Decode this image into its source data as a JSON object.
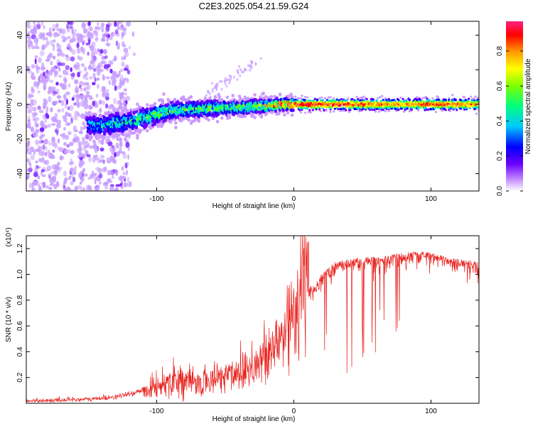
{
  "title": "C2E3.2025.054.21.59.G24",
  "colors": {
    "series": "#e8201c",
    "frame": "#000000"
  },
  "chart_data": [
    {
      "type": "heatmap",
      "xlabel": "Height of straight line (km)",
      "ylabel": "Frequency (Hz)",
      "xlim": [
        -195,
        135
      ],
      "ylim": [
        -50,
        48
      ],
      "xticks": [
        -100,
        0,
        100
      ],
      "xtick_labels": [
        "-100",
        "0",
        "100"
      ],
      "yticks": [
        -40,
        -20,
        0,
        20,
        40
      ],
      "ytick_labels": [
        "-40",
        "-20",
        "0",
        "20",
        "40"
      ],
      "colorbar": {
        "label": "Normalized spectral amplitude",
        "range": [
          0,
          0.97
        ],
        "ticks": [
          0.0,
          0.2,
          0.4,
          0.6,
          0.8
        ],
        "tick_labels": [
          "0.0",
          "0.2",
          "0.4",
          "0.6",
          "0.8"
        ],
        "colormap": [
          "#ffffff",
          "#cc99ff",
          "#6a00ff",
          "#0000ff",
          "#00c8ff",
          "#00ff80",
          "#80ff00",
          "#ffff00",
          "#ff9900",
          "#ff0000",
          "#ff2080"
        ]
      },
      "ridge": {
        "x": [
          -150,
          -140,
          -130,
          -120,
          -110,
          -100,
          -90,
          -80,
          -70,
          -60,
          -50,
          -40,
          -30,
          -20,
          -10,
          0,
          10,
          20,
          40,
          60,
          80,
          100,
          120,
          135
        ],
        "freq_center": [
          -12,
          -12,
          -11,
          -10,
          -8,
          -6,
          -4,
          -3,
          -3,
          -2,
          -2,
          -2,
          -1,
          -1,
          0,
          0,
          0,
          0,
          0,
          0,
          0,
          0,
          0,
          0
        ],
        "amplitude": [
          0.35,
          0.4,
          0.45,
          0.45,
          0.5,
          0.55,
          0.5,
          0.5,
          0.5,
          0.55,
          0.55,
          0.55,
          0.6,
          0.7,
          0.85,
          0.9,
          0.95,
          0.92,
          0.9,
          0.85,
          0.8,
          0.9,
          0.85,
          0.8
        ]
      }
    },
    {
      "type": "line",
      "xlabel": "Height of straight line (km)",
      "ylabel": "SNR (10 * v/v)",
      "y_multiplier": "(x10⁴)",
      "xlim": [
        -195,
        135
      ],
      "ylim": [
        0,
        1.3
      ],
      "xticks": [
        -100,
        0,
        100
      ],
      "xtick_labels": [
        "-100",
        "0",
        "100"
      ],
      "yticks": [
        0.2,
        0.4,
        0.6,
        0.8,
        1.0,
        1.2
      ],
      "ytick_labels": [
        "0.2",
        "0.4",
        "0.6",
        "0.8",
        "1.0",
        "1.2"
      ],
      "series": [
        {
          "x": [
            -195,
            -180,
            -160,
            -150,
            -140,
            -130,
            -120,
            -110,
            -100,
            -90,
            -85,
            -80,
            -70,
            -60,
            -50,
            -40,
            -30,
            -20,
            -15,
            -10,
            -5,
            0,
            5,
            10,
            15,
            20,
            25,
            30,
            40,
            50,
            60,
            70,
            80,
            90,
            100,
            110,
            120,
            135
          ],
          "y": [
            0.02,
            0.02,
            0.03,
            0.03,
            0.04,
            0.05,
            0.07,
            0.1,
            0.13,
            0.18,
            0.2,
            0.17,
            0.15,
            0.18,
            0.22,
            0.25,
            0.3,
            0.35,
            0.4,
            0.5,
            0.6,
            0.75,
            0.85,
            0.9,
            0.92,
            1.0,
            1.05,
            1.1,
            1.12,
            1.13,
            1.14,
            1.15,
            1.17,
            1.18,
            1.17,
            1.14,
            1.12,
            1.1
          ]
        }
      ]
    }
  ]
}
